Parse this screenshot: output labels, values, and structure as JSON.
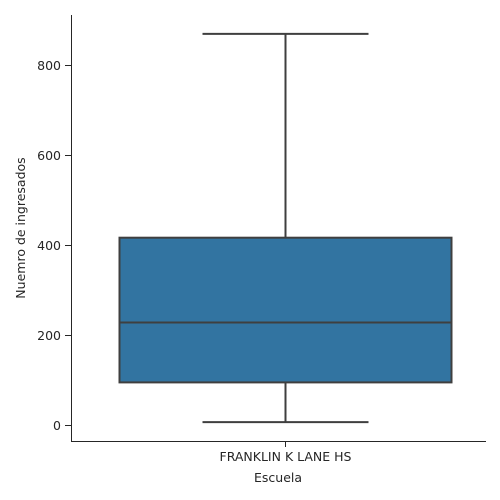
{
  "chart_data": {
    "type": "box",
    "xlabel": "Escuela",
    "ylabel": "Nuemro de ingresados",
    "categories": [
      "FRANKLIN K LANE HS"
    ],
    "boxes": [
      {
        "category": "FRANKLIN K LANE HS",
        "min": 7,
        "q1": 95,
        "median": 228,
        "q3": 416,
        "max": 868
      }
    ],
    "ylim": [
      -35,
      910
    ],
    "yticks": [
      0,
      200,
      400,
      600,
      800
    ],
    "box_color": "#3274a1",
    "line_color": "#3f3f3f",
    "grid": false,
    "legend": "none"
  }
}
